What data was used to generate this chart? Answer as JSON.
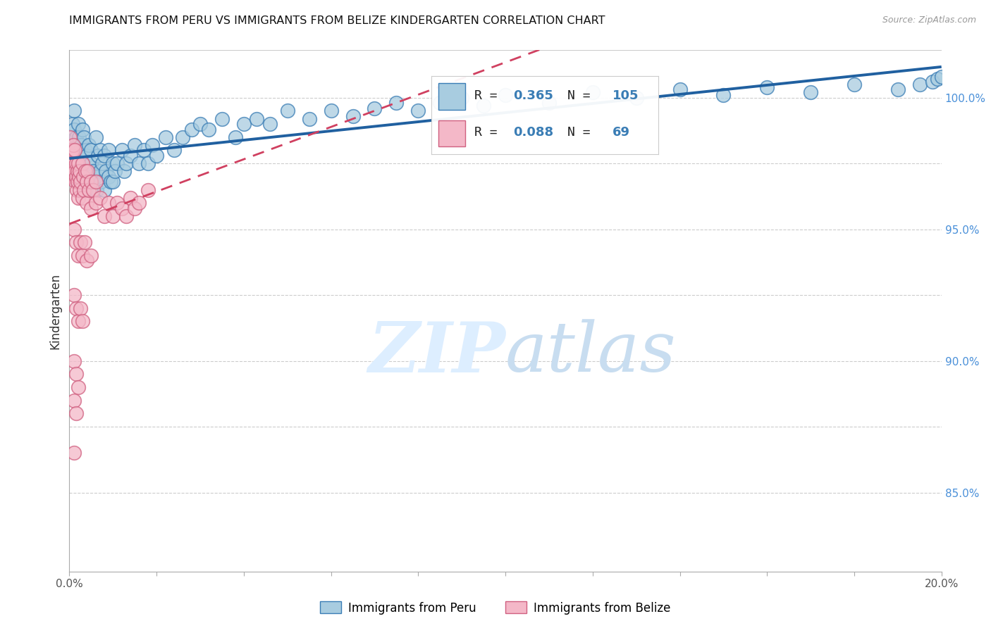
{
  "title": "IMMIGRANTS FROM PERU VS IMMIGRANTS FROM BELIZE KINDERGARTEN CORRELATION CHART",
  "source": "Source: ZipAtlas.com",
  "ylabel": "Kindergarten",
  "x_min": 0.0,
  "x_max": 0.2,
  "y_min": 82.0,
  "y_max": 101.8,
  "R_peru": 0.365,
  "N_peru": 105,
  "R_belize": 0.088,
  "N_belize": 69,
  "color_peru_fill": "#a8cce0",
  "color_peru_edge": "#3a7db5",
  "color_belize_fill": "#f4b8c8",
  "color_belize_edge": "#d06080",
  "color_peru_line": "#2060a0",
  "color_belize_line": "#d04060",
  "watermark_color": "#ddeeff",
  "legend_label_peru": "Immigrants from Peru",
  "legend_label_belize": "Immigrants from Belize",
  "y_tick_vals": [
    85.0,
    90.0,
    95.0,
    100.0
  ],
  "y_grid_vals": [
    85.0,
    87.5,
    90.0,
    92.5,
    95.0,
    97.5,
    100.0
  ],
  "peru_x": [
    0.0002,
    0.0004,
    0.0006,
    0.0006,
    0.0007,
    0.0008,
    0.0009,
    0.001,
    0.001,
    0.0012,
    0.0013,
    0.0014,
    0.0015,
    0.0016,
    0.0017,
    0.0018,
    0.0019,
    0.002,
    0.002,
    0.002,
    0.0022,
    0.0023,
    0.0024,
    0.0025,
    0.0026,
    0.0027,
    0.003,
    0.003,
    0.0032,
    0.0033,
    0.0035,
    0.0036,
    0.0037,
    0.004,
    0.004,
    0.0042,
    0.0044,
    0.0046,
    0.005,
    0.005,
    0.0052,
    0.0055,
    0.006,
    0.006,
    0.0063,
    0.0065,
    0.007,
    0.007,
    0.0072,
    0.0075,
    0.008,
    0.008,
    0.0083,
    0.009,
    0.009,
    0.0095,
    0.01,
    0.01,
    0.0105,
    0.011,
    0.012,
    0.0125,
    0.013,
    0.014,
    0.015,
    0.016,
    0.017,
    0.018,
    0.019,
    0.02,
    0.022,
    0.024,
    0.026,
    0.028,
    0.03,
    0.032,
    0.035,
    0.038,
    0.04,
    0.043,
    0.046,
    0.05,
    0.055,
    0.06,
    0.065,
    0.07,
    0.075,
    0.08,
    0.085,
    0.09,
    0.095,
    0.1,
    0.11,
    0.12,
    0.13,
    0.14,
    0.15,
    0.16,
    0.17,
    0.18,
    0.19,
    0.195,
    0.198,
    0.199,
    0.2
  ],
  "peru_y": [
    97.8,
    98.2,
    97.5,
    98.5,
    99.0,
    98.0,
    97.8,
    99.5,
    98.8,
    97.5,
    98.0,
    97.2,
    98.5,
    97.0,
    98.0,
    96.8,
    97.5,
    99.0,
    98.2,
    97.0,
    98.5,
    97.2,
    96.8,
    98.0,
    97.5,
    98.2,
    98.8,
    97.5,
    97.0,
    98.5,
    97.2,
    98.0,
    96.5,
    97.8,
    96.8,
    97.5,
    98.2,
    97.0,
    97.5,
    98.0,
    96.8,
    97.2,
    98.5,
    97.0,
    96.5,
    97.8,
    97.2,
    98.0,
    96.8,
    97.5,
    97.8,
    96.5,
    97.2,
    98.0,
    97.0,
    96.8,
    97.5,
    96.8,
    97.2,
    97.5,
    98.0,
    97.2,
    97.5,
    97.8,
    98.2,
    97.5,
    98.0,
    97.5,
    98.2,
    97.8,
    98.5,
    98.0,
    98.5,
    98.8,
    99.0,
    98.8,
    99.2,
    98.5,
    99.0,
    99.2,
    99.0,
    99.5,
    99.2,
    99.5,
    99.3,
    99.6,
    99.8,
    99.5,
    99.8,
    100.0,
    99.7,
    100.1,
    99.8,
    100.2,
    100.0,
    100.3,
    100.1,
    100.4,
    100.2,
    100.5,
    100.3,
    100.5,
    100.6,
    100.7,
    100.8
  ],
  "belize_x": [
    0.0001,
    0.0002,
    0.0003,
    0.0004,
    0.0005,
    0.0006,
    0.0007,
    0.0008,
    0.0009,
    0.001,
    0.0011,
    0.0012,
    0.0013,
    0.0014,
    0.0015,
    0.0016,
    0.0017,
    0.0018,
    0.0019,
    0.002,
    0.0021,
    0.0022,
    0.0023,
    0.0024,
    0.0025,
    0.003,
    0.003,
    0.0032,
    0.0034,
    0.0036,
    0.004,
    0.004,
    0.0042,
    0.0045,
    0.005,
    0.005,
    0.0055,
    0.006,
    0.006,
    0.007,
    0.008,
    0.009,
    0.01,
    0.011,
    0.012,
    0.013,
    0.014,
    0.015,
    0.016,
    0.018,
    0.001,
    0.0015,
    0.002,
    0.0025,
    0.003,
    0.0035,
    0.004,
    0.005,
    0.001,
    0.0015,
    0.002,
    0.0025,
    0.003,
    0.001,
    0.0015,
    0.002,
    0.001,
    0.0015,
    0.001
  ],
  "belize_y": [
    98.5,
    98.0,
    97.5,
    97.0,
    97.8,
    97.2,
    98.0,
    97.5,
    98.2,
    97.0,
    97.5,
    98.0,
    97.2,
    96.8,
    97.5,
    97.0,
    96.5,
    97.2,
    96.8,
    97.5,
    96.2,
    97.0,
    96.5,
    97.2,
    96.8,
    97.5,
    96.2,
    97.0,
    96.5,
    97.2,
    96.8,
    96.0,
    97.2,
    96.5,
    96.8,
    95.8,
    96.5,
    96.0,
    96.8,
    96.2,
    95.5,
    96.0,
    95.5,
    96.0,
    95.8,
    95.5,
    96.2,
    95.8,
    96.0,
    96.5,
    95.0,
    94.5,
    94.0,
    94.5,
    94.0,
    94.5,
    93.8,
    94.0,
    92.5,
    92.0,
    91.5,
    92.0,
    91.5,
    90.0,
    89.5,
    89.0,
    88.5,
    88.0,
    86.5
  ]
}
